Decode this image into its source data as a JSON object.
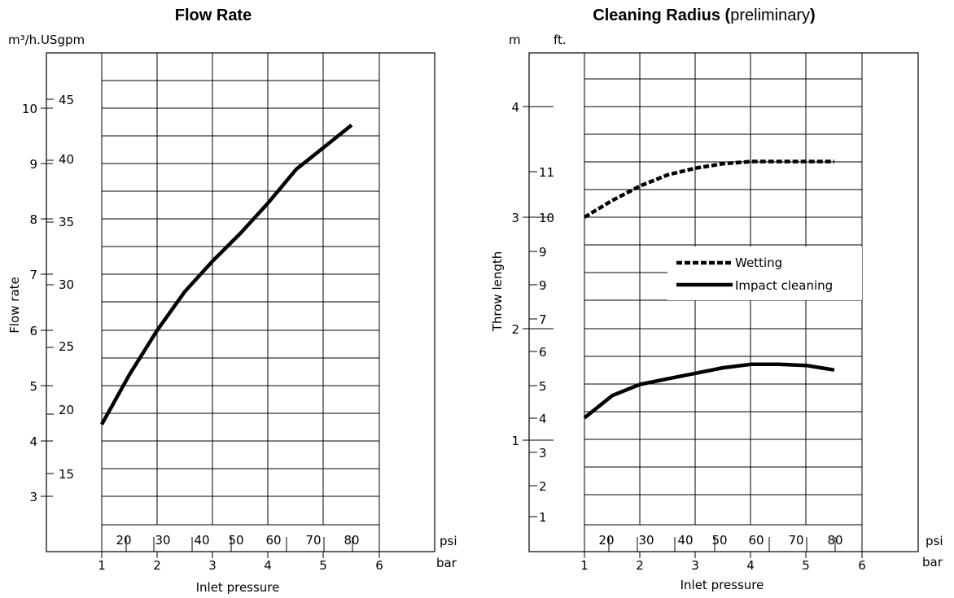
{
  "chart_data": [
    {
      "type": "line",
      "title": "Flow Rate",
      "ylabel": "Flow rate",
      "xlabel": "Inlet pressure",
      "y_unit_label": "m³/h.USgpm",
      "x_unit_primary": "bar",
      "x_unit_secondary": "psi",
      "xlim": [
        0,
        6
      ],
      "x_ticks_bar": [
        "1",
        "2",
        "3",
        "4",
        "5",
        "6"
      ],
      "x_ticks_psi": [
        "20",
        "30",
        "40",
        "50",
        "60",
        "70",
        "80"
      ],
      "y_ticks_m3h": [
        "3",
        "4",
        "5",
        "6",
        "7",
        "8",
        "9",
        "10"
      ],
      "y_ticks_usgpm": [
        "15",
        "20",
        "25",
        "30",
        "35",
        "40",
        "45"
      ],
      "grid": true,
      "series": [
        {
          "x": [
            1,
            1.5,
            2,
            2.5,
            3,
            3.5,
            4,
            4.5,
            5,
            5.5
          ],
          "y": [
            4.3,
            5.2,
            6.0,
            6.7,
            7.25,
            7.75,
            8.3,
            8.9,
            9.3,
            9.7
          ]
        }
      ]
    },
    {
      "type": "line",
      "title": "Cleaning Radius",
      "title_suffix": "preliminary",
      "ylabel": "Throw length",
      "xlabel": "Inlet pressure",
      "y_unit_left": "m",
      "y_unit_right": "ft.",
      "x_unit_primary": "bar",
      "x_unit_secondary": "psi",
      "xlim": [
        0,
        6
      ],
      "x_ticks_bar": [
        "1",
        "2",
        "3",
        "4",
        "5",
        "6"
      ],
      "x_ticks_psi": [
        "20",
        "30",
        "40",
        "50",
        "60",
        "70",
        "80"
      ],
      "y_ticks_m": [
        "1",
        "2",
        "3",
        "4"
      ],
      "y_ticks_ft": [
        "1",
        "2",
        "3",
        "4",
        "5",
        "6",
        "7",
        "9",
        "9",
        "10",
        "11"
      ],
      "grid": true,
      "legend": "center-right",
      "series": [
        {
          "name": "Wetting",
          "style": "dashed",
          "x": [
            1,
            1.5,
            2,
            2.5,
            3,
            3.5,
            4,
            4.5,
            5,
            5.5
          ],
          "y": [
            3.0,
            3.15,
            3.28,
            3.38,
            3.44,
            3.48,
            3.5,
            3.5,
            3.5,
            3.5
          ]
        },
        {
          "name": "Impact cleaning",
          "style": "solid",
          "x": [
            1,
            1.5,
            2,
            2.5,
            3,
            3.5,
            4,
            4.5,
            5,
            5.5
          ],
          "y": [
            1.2,
            1.4,
            1.5,
            1.55,
            1.6,
            1.65,
            1.68,
            1.68,
            1.67,
            1.63
          ]
        }
      ]
    }
  ]
}
